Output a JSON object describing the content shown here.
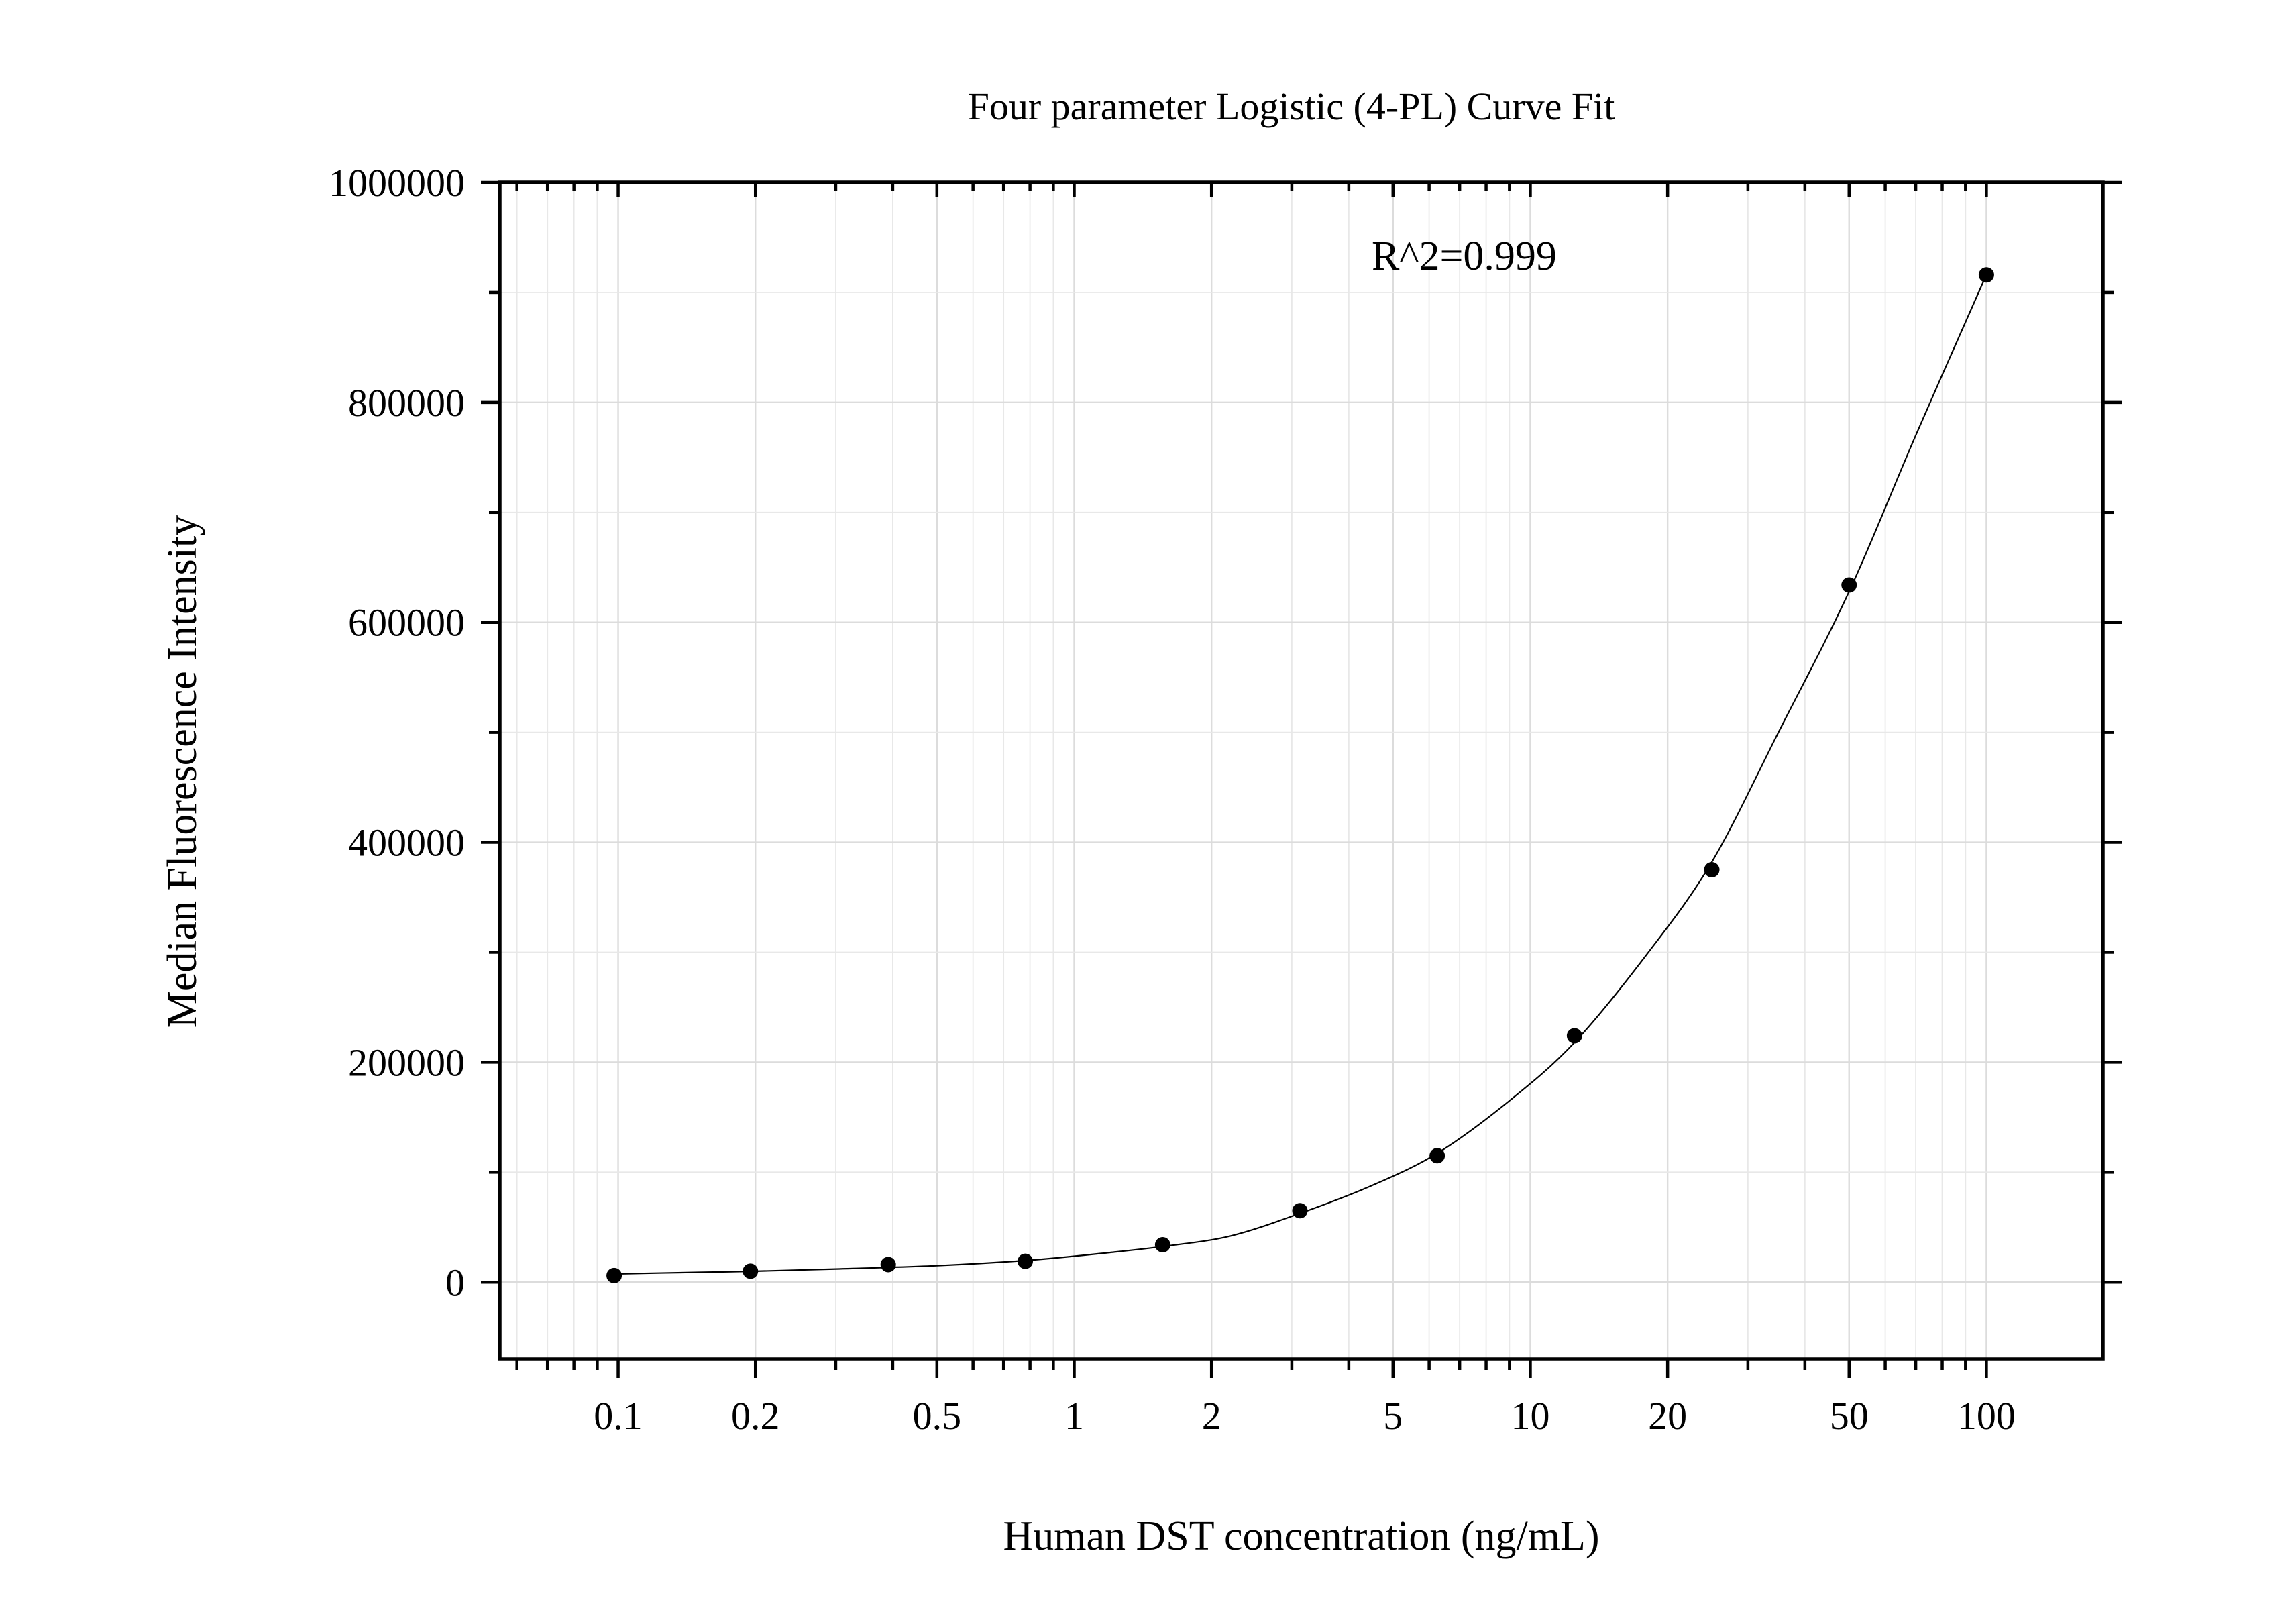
{
  "chart_data": {
    "type": "scatter",
    "title": "Four parameter Logistic (4-PL) Curve Fit",
    "xlabel": "Human DST concentration (ng/mL)",
    "ylabel": "Median Fluorescence Intensity",
    "annotation": "R^2=0.999",
    "x_scale": "log",
    "xlim": [
      0.055,
      180
    ],
    "ylim": [
      -70000,
      1000000
    ],
    "x_ticks": [
      0.1,
      0.2,
      0.5,
      1,
      2,
      5,
      10,
      20,
      50,
      100
    ],
    "x_tick_labels": [
      "0.1",
      "0.2",
      "0.5",
      "1",
      "2",
      "5",
      "10",
      "20",
      "50",
      "100"
    ],
    "y_ticks": [
      0,
      200000,
      400000,
      600000,
      800000,
      1000000
    ],
    "y_tick_labels": [
      "0",
      "200000",
      "400000",
      "600000",
      "800000",
      "1000000"
    ],
    "grid": true,
    "series": [
      {
        "x": [
          0.098,
          0.195,
          0.391,
          0.781,
          1.563,
          3.125,
          6.25,
          12.5,
          25,
          50,
          100
        ],
        "y": [
          6000,
          10000,
          16000,
          19000,
          34000,
          65000,
          115000,
          224000,
          375000,
          634000,
          916000
        ]
      }
    ],
    "fit_curve": {
      "model": "4-PL",
      "x": [
        0.098,
        0.15,
        0.2,
        0.3,
        0.5,
        0.8,
        1.2,
        1.6,
        2.2,
        3.1,
        4.5,
        6.3,
        9,
        12.5,
        18,
        25,
        35,
        50,
        70,
        100
      ],
      "y": [
        7500,
        9000,
        10000,
        12000,
        15000,
        20000,
        27000,
        33000,
        42000,
        62000,
        88000,
        118000,
        165000,
        218000,
        298000,
        382000,
        500000,
        628000,
        770000,
        916000
      ]
    }
  }
}
